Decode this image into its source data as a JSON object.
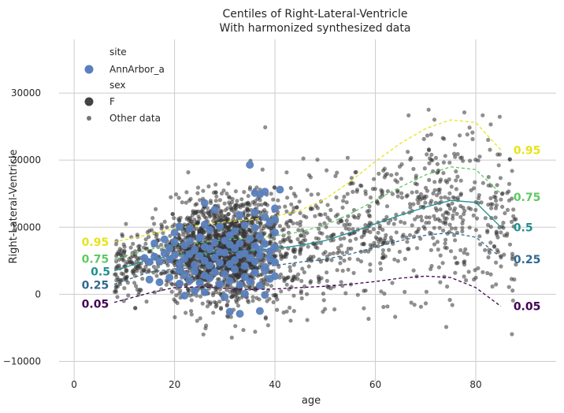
{
  "chart_data": {
    "type": "scatter",
    "title": "Centiles of Right-Lateral-Ventricle",
    "subtitle": "With harmonized synthesized data",
    "xlabel": "age",
    "ylabel": "Right-Lateral-Ventricle",
    "xlim": [
      -3,
      96
    ],
    "ylim": [
      -13000,
      38000
    ],
    "xticks": [
      0,
      20,
      40,
      60,
      80
    ],
    "yticks": [
      -10000,
      0,
      10000,
      20000,
      30000
    ],
    "xtick_labels": [
      "0",
      "20",
      "40",
      "60",
      "80"
    ],
    "ytick_labels": [
      "−10000",
      "0",
      "10000",
      "20000",
      "30000"
    ],
    "grid": true,
    "legend": {
      "placement": "top-left",
      "entries": [
        {
          "text": "site",
          "kind": "header"
        },
        {
          "text": "AnnArbor_a",
          "kind": "marker",
          "color": "#5a7fbd"
        },
        {
          "text": "sex",
          "kind": "header"
        },
        {
          "text": "F",
          "kind": "marker",
          "color": "#444444"
        },
        {
          "text": "Other data",
          "kind": "small-marker",
          "color": "#777777"
        }
      ]
    },
    "centiles": [
      {
        "label": "0.05",
        "color": "#440154",
        "dashed": true,
        "x": [
          8,
          15,
          20,
          25,
          30,
          35,
          40,
          45,
          50,
          55,
          60,
          65,
          70,
          75,
          80,
          85
        ],
        "y": [
          -1200,
          200,
          1000,
          1100,
          900,
          700,
          800,
          1000,
          1200,
          1500,
          1900,
          2400,
          2700,
          2500,
          1000,
          -1800
        ]
      },
      {
        "label": "0.25",
        "color": "#31688e",
        "dashed": true,
        "x": [
          8,
          15,
          20,
          25,
          30,
          35,
          40,
          45,
          50,
          55,
          60,
          65,
          70,
          75,
          80,
          85
        ],
        "y": [
          1500,
          3300,
          3800,
          4000,
          4000,
          4000,
          4300,
          4800,
          5200,
          6000,
          7000,
          8000,
          8800,
          9200,
          8500,
          5500
        ]
      },
      {
        "label": "0.5",
        "color": "#21908d",
        "dashed": false,
        "x": [
          8,
          15,
          20,
          25,
          30,
          35,
          40,
          45,
          50,
          55,
          60,
          65,
          70,
          75,
          80,
          85
        ],
        "y": [
          3500,
          5200,
          5800,
          6100,
          6400,
          6500,
          6800,
          7300,
          8000,
          9200,
          10500,
          11800,
          13000,
          14000,
          13700,
          10000
        ]
      },
      {
        "label": "0.75",
        "color": "#5ec962",
        "dashed": true,
        "x": [
          8,
          15,
          20,
          25,
          30,
          35,
          40,
          45,
          50,
          55,
          60,
          65,
          70,
          75,
          80,
          85
        ],
        "y": [
          5200,
          6700,
          7300,
          7700,
          8100,
          8300,
          8700,
          9300,
          10300,
          12000,
          14000,
          16000,
          17800,
          19000,
          18600,
          15000
        ]
      },
      {
        "label": "0.95",
        "color": "#e6e419",
        "dashed": true,
        "x": [
          8,
          15,
          20,
          25,
          30,
          35,
          40,
          45,
          50,
          55,
          60,
          65,
          70,
          75,
          80,
          85
        ],
        "y": [
          7800,
          8900,
          9800,
          10300,
          10800,
          11100,
          11600,
          12500,
          14200,
          16800,
          19800,
          22500,
          24700,
          26000,
          25600,
          21500
        ]
      }
    ],
    "site_points": {
      "name": "AnnArbor_a",
      "color": "#5a7fbd",
      "x": [
        35,
        36,
        37,
        41,
        38,
        26,
        28,
        33,
        36,
        38,
        40,
        40,
        20,
        21,
        23,
        25,
        26,
        27,
        29,
        31,
        32,
        34,
        36,
        37,
        39,
        40,
        16,
        18,
        19,
        20,
        22,
        23,
        24,
        25,
        26,
        27,
        28,
        29,
        30,
        31,
        32,
        33,
        34,
        35,
        36,
        37,
        38,
        39,
        40,
        14,
        15,
        16,
        17,
        18,
        19,
        20,
        21,
        22,
        23,
        24,
        25,
        26,
        27,
        28,
        29,
        30,
        31,
        32,
        33,
        34,
        35,
        36,
        37,
        38,
        39,
        40,
        21,
        22,
        24,
        26,
        28,
        30,
        32,
        34,
        36,
        38,
        40,
        15,
        17,
        19,
        21,
        23,
        25,
        27,
        29,
        31,
        33,
        35,
        37,
        39,
        22,
        24,
        26,
        30,
        34,
        38,
        31,
        33,
        37
      ],
      "y": [
        19300,
        15100,
        14900,
        15600,
        15300,
        13600,
        12600,
        11800,
        12200,
        11500,
        11200,
        12800,
        9200,
        10100,
        9800,
        8500,
        10400,
        9600,
        10100,
        8800,
        9400,
        10300,
        9900,
        8600,
        10700,
        9200,
        7600,
        8200,
        6900,
        7800,
        7300,
        7900,
        6600,
        8400,
        7100,
        6800,
        7700,
        6300,
        8000,
        7400,
        6900,
        7600,
        6100,
        8300,
        7200,
        6700,
        7500,
        6400,
        7000,
        5400,
        4800,
        5600,
        4900,
        6100,
        5200,
        5800,
        4600,
        5300,
        6000,
        4400,
        5700,
        5000,
        4300,
        5500,
        4700,
        6200,
        4500,
        5100,
        5900,
        4200,
        5400,
        4900,
        5800,
        4100,
        5300,
        4800,
        3600,
        2900,
        3400,
        2800,
        3300,
        3000,
        3700,
        2600,
        3200,
        3500,
        2700,
        2200,
        1800,
        2500,
        1600,
        2100,
        1700,
        2400,
        1500,
        2000,
        1400,
        1900,
        1300,
        2300,
        -200,
        500,
        300,
        -400,
        100,
        -100,
        -2600,
        -2900,
        -2500
      ]
    },
    "label_colors": {
      "0.05": "#440154",
      "0.25": "#31688e",
      "0.5": "#21908d",
      "0.75": "#5ec962",
      "0.95": "#e6e419"
    }
  }
}
